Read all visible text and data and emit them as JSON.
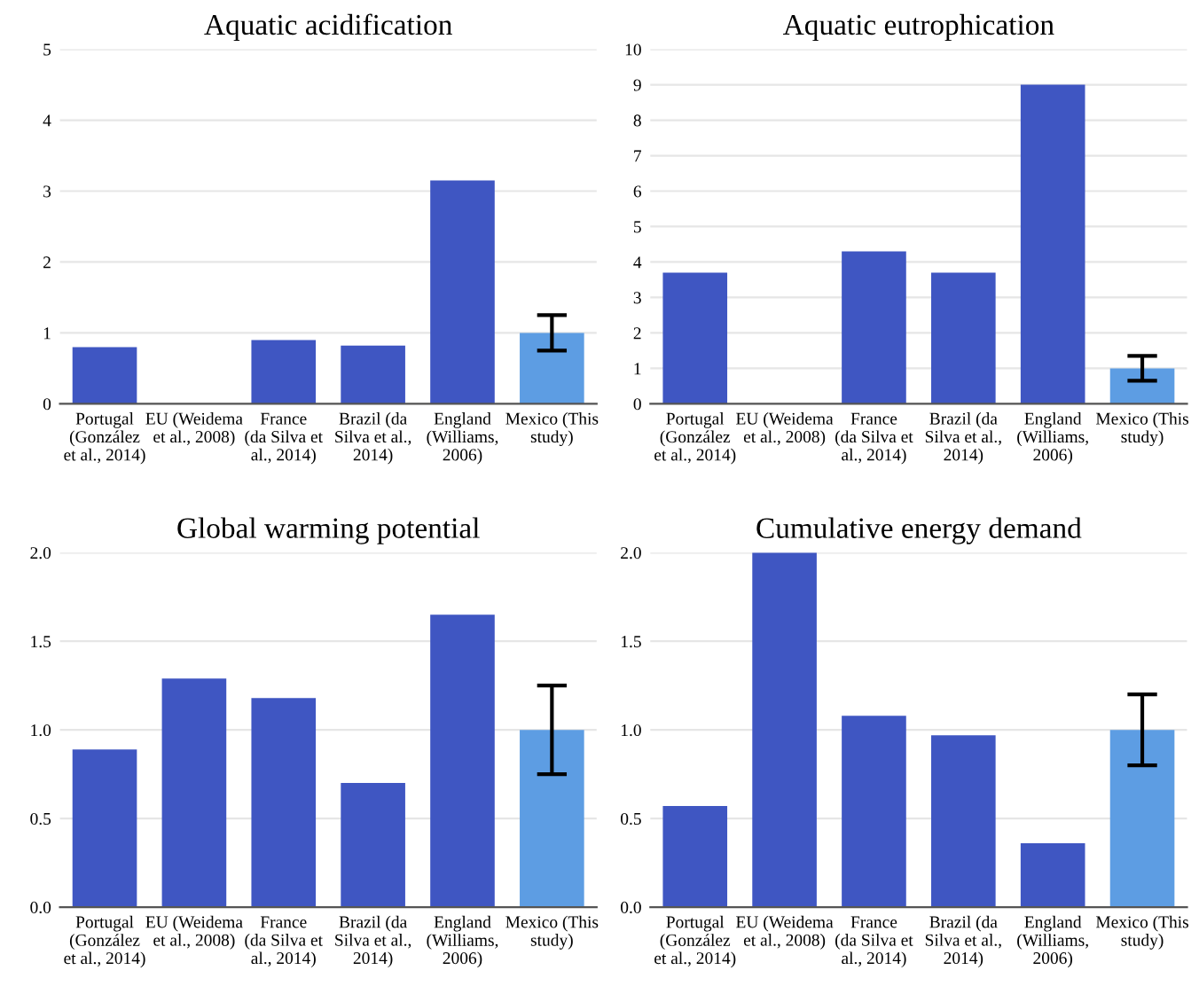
{
  "chart_data": [
    {
      "type": "bar",
      "title": "Aquatic acidification",
      "categories": [
        "Portugal\n(González\net al., 2014)",
        "EU (Weidema\net al., 2008)",
        "France\n(da Silva et\nal., 2014)",
        "Brazil (da\nSilva et al.,\n2014)",
        "England\n(Williams,\n2006)",
        "Mexico (This\nstudy)"
      ],
      "values": [
        0.8,
        null,
        0.9,
        0.82,
        3.15,
        1.0
      ],
      "colors": [
        "#3f56c2",
        "#3f56c2",
        "#3f56c2",
        "#3f56c2",
        "#3f56c2",
        "#5d9de3"
      ],
      "errors": [
        null,
        null,
        null,
        null,
        null,
        [
          0.75,
          1.25
        ]
      ],
      "ylim": [
        0,
        5
      ],
      "yticks": [
        0,
        1,
        2,
        3,
        4,
        5
      ],
      "grid": "y"
    },
    {
      "type": "bar",
      "title": "Aquatic eutrophication",
      "categories": [
        "Portugal\n(González\net al., 2014)",
        "EU (Weidema\net al., 2008)",
        "France\n(da Silva et\nal., 2014)",
        "Brazil (da\nSilva et al.,\n2014)",
        "England\n(Williams,\n2006)",
        "Mexico (This\nstudy)"
      ],
      "values": [
        3.7,
        null,
        4.3,
        3.7,
        9.0,
        1.0
      ],
      "colors": [
        "#3f56c2",
        "#3f56c2",
        "#3f56c2",
        "#3f56c2",
        "#3f56c2",
        "#5d9de3"
      ],
      "errors": [
        null,
        null,
        null,
        null,
        null,
        [
          0.65,
          1.35
        ]
      ],
      "ylim": [
        0,
        10
      ],
      "yticks": [
        0,
        1,
        2,
        3,
        4,
        5,
        6,
        7,
        8,
        9,
        10
      ],
      "grid": "y"
    },
    {
      "type": "bar",
      "title": "Global warming potential",
      "categories": [
        "Portugal\n(González\net al., 2014)",
        "EU (Weidema\net al., 2008)",
        "France\n(da Silva et\nal., 2014)",
        "Brazil (da\nSilva et al.,\n2014)",
        "England\n(Williams,\n2006)",
        "Mexico (This\nstudy)"
      ],
      "values": [
        0.89,
        1.29,
        1.18,
        0.7,
        1.65,
        1.0
      ],
      "colors": [
        "#3f56c2",
        "#3f56c2",
        "#3f56c2",
        "#3f56c2",
        "#3f56c2",
        "#5d9de3"
      ],
      "errors": [
        null,
        null,
        null,
        null,
        null,
        [
          0.75,
          1.25
        ]
      ],
      "ylim": [
        0,
        2
      ],
      "yticks": [
        {
          "value": 0,
          "label": "0.0"
        },
        {
          "value": 0.5,
          "label": "0.5"
        },
        {
          "value": 1,
          "label": "1.0"
        },
        {
          "value": 1.5,
          "label": "1.5"
        },
        {
          "value": 2,
          "label": "2.0"
        }
      ],
      "grid": "y"
    },
    {
      "type": "bar",
      "title": "Cumulative energy demand",
      "categories": [
        "Portugal\n(González\net al., 2014)",
        "EU (Weidema\net al., 2008)",
        "France\n(da Silva et\nal., 2014)",
        "Brazil (da\nSilva et al.,\n2014)",
        "England\n(Williams,\n2006)",
        "Mexico (This\nstudy)"
      ],
      "values": [
        0.57,
        2.0,
        1.08,
        0.97,
        0.36,
        1.0
      ],
      "colors": [
        "#3f56c2",
        "#3f56c2",
        "#3f56c2",
        "#3f56c2",
        "#3f56c2",
        "#5d9de3"
      ],
      "errors": [
        null,
        null,
        null,
        null,
        null,
        [
          0.8,
          1.2
        ]
      ],
      "ylim": [
        0,
        2
      ],
      "yticks": [
        {
          "value": 0,
          "label": "0.0"
        },
        {
          "value": 0.5,
          "label": "0.5"
        },
        {
          "value": 1,
          "label": "1.0"
        },
        {
          "value": 1.5,
          "label": "1.5"
        },
        {
          "value": 2,
          "label": "2.0"
        }
      ],
      "grid": "y"
    }
  ]
}
